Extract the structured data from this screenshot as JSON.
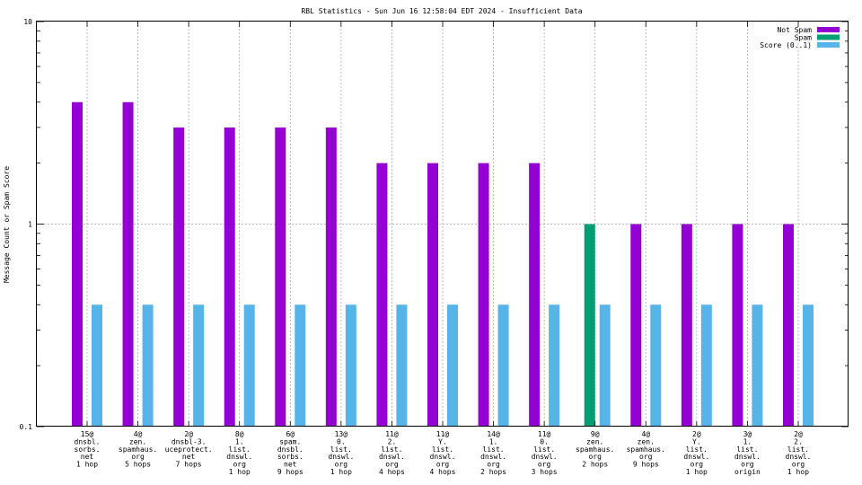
{
  "chart_data": {
    "type": "bar",
    "title": "RBL Statistics - Sun Jun 16 12:58:04 EDT 2024 - Insufficient Data",
    "ylabel": "Message Count or Spam Score",
    "xlabel": "",
    "yscale": "log",
    "ylim": [
      0.1,
      10
    ],
    "yticks": [
      "0.1",
      "1",
      "10"
    ],
    "grid": true,
    "legend_position": "top-right",
    "categories": [
      [
        "15@",
        "dnsbl.",
        "sorbs.",
        "net",
        "1 hop"
      ],
      [
        "4@",
        "zen.",
        "spamhaus.",
        "org",
        "5 hops"
      ],
      [
        "2@",
        "dnsbl-3.",
        "uceprotect.",
        "net",
        "7 hops"
      ],
      [
        "8@",
        "1.",
        "list.",
        "dnswl.",
        "org",
        "1 hop"
      ],
      [
        "6@",
        "spam.",
        "dnsbl.",
        "sorbs.",
        "net",
        "9 hops"
      ],
      [
        "13@",
        "0.",
        "list.",
        "dnswl.",
        "org",
        "1 hop"
      ],
      [
        "11@",
        "2.",
        "list.",
        "dnswl.",
        "org",
        "4 hops"
      ],
      [
        "11@",
        "Y.",
        "list.",
        "dnswl.",
        "org",
        "4 hops"
      ],
      [
        "14@",
        "1.",
        "list.",
        "dnswl.",
        "org",
        "2 hops"
      ],
      [
        "11@",
        "0.",
        "list.",
        "dnswl.",
        "org",
        "3 hops"
      ],
      [
        "9@",
        "zen.",
        "spamhaus.",
        "org",
        "2 hops"
      ],
      [
        "4@",
        "zen.",
        "spamhaus.",
        "org",
        "9 hops"
      ],
      [
        "2@",
        "Y.",
        "list.",
        "dnswl.",
        "org",
        "1 hop"
      ],
      [
        "3@",
        "1.",
        "list.",
        "dnswl.",
        "org",
        "origin"
      ],
      [
        "2@",
        "2.",
        "list.",
        "dnswl.",
        "org",
        "1 hop"
      ]
    ],
    "series": [
      {
        "name": "Not Spam",
        "color": "#9400d3",
        "values": [
          4,
          4,
          3,
          3,
          3,
          3,
          2,
          2,
          2,
          2,
          null,
          1,
          1,
          1,
          1
        ]
      },
      {
        "name": "Spam",
        "color": "#009e73",
        "values": [
          null,
          null,
          null,
          null,
          null,
          null,
          null,
          null,
          null,
          null,
          1,
          null,
          null,
          null,
          null
        ]
      },
      {
        "name": "Score (0..1)",
        "color": "#56b4e9",
        "values": [
          0.4,
          0.4,
          0.4,
          0.4,
          0.4,
          0.4,
          0.4,
          0.4,
          0.4,
          0.4,
          0.4,
          0.4,
          0.4,
          0.4,
          0.4
        ]
      }
    ]
  }
}
